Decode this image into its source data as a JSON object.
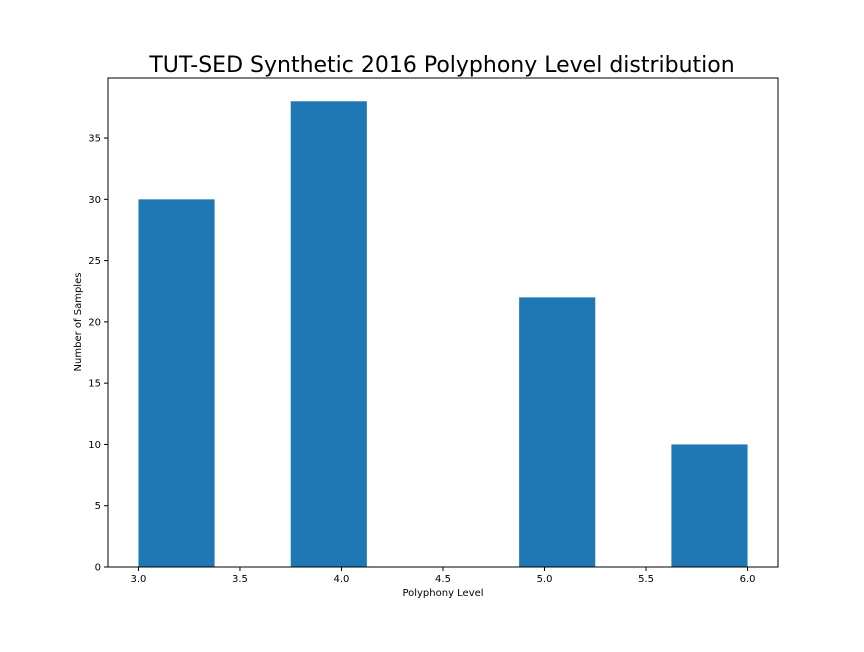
{
  "chart_data": {
    "type": "bar",
    "title": "TUT-SED Synthetic 2016 Polyphony Level distribution",
    "xlabel": "Polyphony Level",
    "ylabel": "Number of Samples",
    "xlim": [
      2.85,
      6.15
    ],
    "ylim": [
      0,
      39.9
    ],
    "x_ticks": [
      3.0,
      3.5,
      4.0,
      4.5,
      5.0,
      5.5,
      6.0
    ],
    "x_tick_labels": [
      "3.0",
      "3.5",
      "4.0",
      "4.5",
      "5.0",
      "5.5",
      "6.0"
    ],
    "y_ticks": [
      0,
      5,
      10,
      15,
      20,
      25,
      30,
      35
    ],
    "y_tick_labels": [
      "0",
      "5",
      "10",
      "15",
      "20",
      "25",
      "30",
      "35"
    ],
    "bars": [
      {
        "x_start": 3.0,
        "x_end": 3.375,
        "value": 30
      },
      {
        "x_start": 3.75,
        "x_end": 4.125,
        "value": 38
      },
      {
        "x_start": 4.875,
        "x_end": 5.25,
        "value": 22
      },
      {
        "x_start": 5.625,
        "x_end": 6.0,
        "value": 10
      }
    ],
    "grid": false,
    "legend": "none"
  },
  "colors": {
    "bar": "#1f77b4",
    "axis": "#000000",
    "background": "#ffffff"
  }
}
